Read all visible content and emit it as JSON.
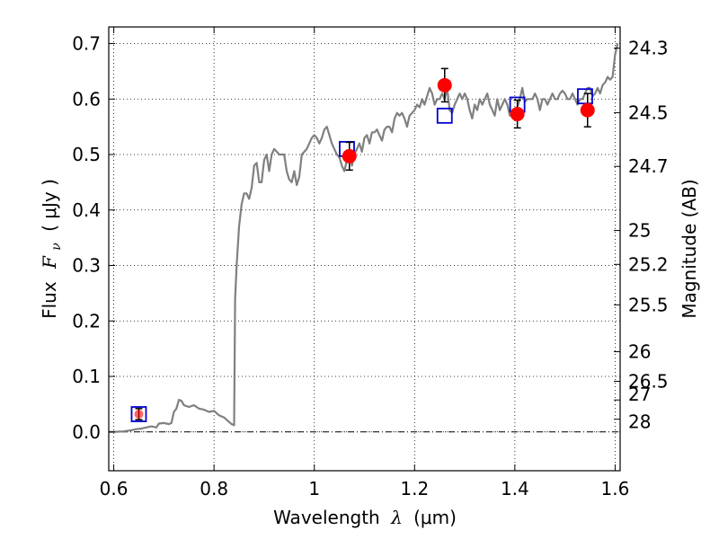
{
  "chart_data": {
    "type": "scatter",
    "xlabel_text": "Wavelength",
    "xlabel_symbol": "λ",
    "xlabel_unit": "(μm)",
    "ylabel_text": "Flux",
    "ylabel_symbol": "F",
    "ylabel_sub": "ν",
    "ylabel_unit": "( μJy )",
    "y2label": "Magnitude (AB)",
    "xlim": [
      0.59,
      1.61
    ],
    "ylim": [
      -0.07,
      0.73
    ],
    "xticks": [
      0.6,
      0.8,
      1.0,
      1.2,
      1.4,
      1.6
    ],
    "xtick_labels": [
      "0.6",
      "0.8",
      "1",
      "1.2",
      "1.4",
      "1.6"
    ],
    "yticks": [
      0.0,
      0.1,
      0.2,
      0.3,
      0.4,
      0.5,
      0.6,
      0.7
    ],
    "ytick_labels": [
      "0.0",
      "0.1",
      "0.2",
      "0.3",
      "0.4",
      "0.5",
      "0.6",
      "0.7"
    ],
    "mag_ticks": [
      24.3,
      24.5,
      24.7,
      25,
      25.2,
      25.5,
      26,
      26.5,
      27,
      28
    ],
    "mag_tick_labels": [
      "24.3",
      "24.5",
      "24.7",
      "25",
      "25.2",
      "25.5",
      "26",
      "26.5",
      "27",
      "28"
    ],
    "grid": true,
    "zero_line": true,
    "series": [
      {
        "kind": "line",
        "color": "#808080",
        "x": [
          0.59,
          0.6,
          0.62,
          0.635,
          0.645,
          0.655,
          0.665,
          0.675,
          0.685,
          0.69,
          0.7,
          0.705,
          0.71,
          0.715,
          0.72,
          0.725,
          0.73,
          0.735,
          0.74,
          0.75,
          0.76,
          0.77,
          0.78,
          0.79,
          0.8,
          0.81,
          0.82,
          0.83,
          0.835,
          0.84,
          0.842,
          0.845,
          0.85,
          0.855,
          0.86,
          0.865,
          0.87,
          0.875,
          0.88,
          0.885,
          0.89,
          0.895,
          0.9,
          0.905,
          0.91,
          0.915,
          0.92,
          0.925,
          0.93,
          0.935,
          0.94,
          0.945,
          0.95,
          0.955,
          0.96,
          0.965,
          0.97,
          0.975,
          0.98,
          0.985,
          0.99,
          0.995,
          1.0,
          1.005,
          1.01,
          1.015,
          1.02,
          1.025,
          1.03,
          1.035,
          1.04,
          1.045,
          1.05,
          1.055,
          1.06,
          1.065,
          1.07,
          1.075,
          1.08,
          1.085,
          1.09,
          1.095,
          1.1,
          1.105,
          1.11,
          1.115,
          1.12,
          1.125,
          1.13,
          1.135,
          1.14,
          1.145,
          1.15,
          1.155,
          1.16,
          1.165,
          1.17,
          1.175,
          1.18,
          1.185,
          1.19,
          1.195,
          1.2,
          1.205,
          1.21,
          1.215,
          1.22,
          1.225,
          1.23,
          1.235,
          1.24,
          1.245,
          1.25,
          1.255,
          1.26,
          1.265,
          1.27,
          1.275,
          1.28,
          1.285,
          1.29,
          1.295,
          1.3,
          1.305,
          1.31,
          1.315,
          1.32,
          1.325,
          1.33,
          1.335,
          1.34,
          1.345,
          1.35,
          1.355,
          1.36,
          1.365,
          1.37,
          1.375,
          1.38,
          1.385,
          1.39,
          1.395,
          1.4,
          1.405,
          1.41,
          1.415,
          1.42,
          1.425,
          1.43,
          1.435,
          1.44,
          1.445,
          1.45,
          1.455,
          1.46,
          1.465,
          1.47,
          1.475,
          1.48,
          1.485,
          1.49,
          1.495,
          1.5,
          1.505,
          1.51,
          1.515,
          1.52,
          1.525,
          1.53,
          1.535,
          1.54,
          1.545,
          1.55,
          1.555,
          1.56,
          1.565,
          1.57,
          1.575,
          1.58,
          1.585,
          1.59,
          1.595,
          1.6,
          1.605
        ],
        "y": [
          0.0,
          0.0,
          0.001,
          0.003,
          0.005,
          0.006,
          0.008,
          0.01,
          0.008,
          0.015,
          0.016,
          0.015,
          0.014,
          0.016,
          0.036,
          0.042,
          0.058,
          0.056,
          0.048,
          0.045,
          0.048,
          0.042,
          0.04,
          0.036,
          0.038,
          0.03,
          0.026,
          0.018,
          0.014,
          0.012,
          0.24,
          0.3,
          0.37,
          0.41,
          0.43,
          0.43,
          0.42,
          0.44,
          0.48,
          0.485,
          0.45,
          0.45,
          0.49,
          0.5,
          0.47,
          0.5,
          0.51,
          0.505,
          0.5,
          0.5,
          0.5,
          0.47,
          0.455,
          0.45,
          0.47,
          0.445,
          0.46,
          0.5,
          0.505,
          0.51,
          0.52,
          0.53,
          0.535,
          0.53,
          0.52,
          0.53,
          0.545,
          0.55,
          0.535,
          0.52,
          0.51,
          0.5,
          0.495,
          0.48,
          0.47,
          0.49,
          0.5,
          0.48,
          0.5,
          0.51,
          0.52,
          0.505,
          0.53,
          0.535,
          0.52,
          0.54,
          0.54,
          0.545,
          0.535,
          0.525,
          0.545,
          0.55,
          0.55,
          0.54,
          0.565,
          0.575,
          0.57,
          0.575,
          0.565,
          0.55,
          0.57,
          0.575,
          0.58,
          0.59,
          0.585,
          0.6,
          0.59,
          0.605,
          0.62,
          0.61,
          0.59,
          0.6,
          0.6,
          0.61,
          0.6,
          0.62,
          0.58,
          0.575,
          0.59,
          0.6,
          0.61,
          0.6,
          0.61,
          0.6,
          0.58,
          0.565,
          0.59,
          0.58,
          0.6,
          0.59,
          0.6,
          0.61,
          0.59,
          0.58,
          0.57,
          0.6,
          0.58,
          0.59,
          0.6,
          0.59,
          0.57,
          0.575,
          0.58,
          0.585,
          0.6,
          0.62,
          0.595,
          0.6,
          0.6,
          0.6,
          0.61,
          0.6,
          0.58,
          0.6,
          0.6,
          0.59,
          0.6,
          0.61,
          0.6,
          0.6,
          0.61,
          0.615,
          0.61,
          0.6,
          0.6,
          0.61,
          0.6,
          0.59,
          0.6,
          0.6,
          0.61,
          0.62,
          0.62,
          0.605,
          0.61,
          0.62,
          0.61,
          0.625,
          0.63,
          0.64,
          0.635,
          0.64,
          0.68,
          0.7
        ]
      },
      {
        "kind": "open_square",
        "color": "#0000cc",
        "x": [
          0.65,
          1.065,
          1.26,
          1.405,
          1.54
        ],
        "y": [
          0.032,
          0.51,
          0.57,
          0.59,
          0.605
        ]
      },
      {
        "kind": "filled_circle_errorbar",
        "color": "#ff0000",
        "x": [
          0.65,
          1.07,
          1.26,
          1.405,
          1.545
        ],
        "y": [
          0.032,
          0.497,
          0.625,
          0.573,
          0.58
        ],
        "yerr": [
          0.01,
          0.025,
          0.03,
          0.025,
          0.03
        ]
      }
    ]
  }
}
